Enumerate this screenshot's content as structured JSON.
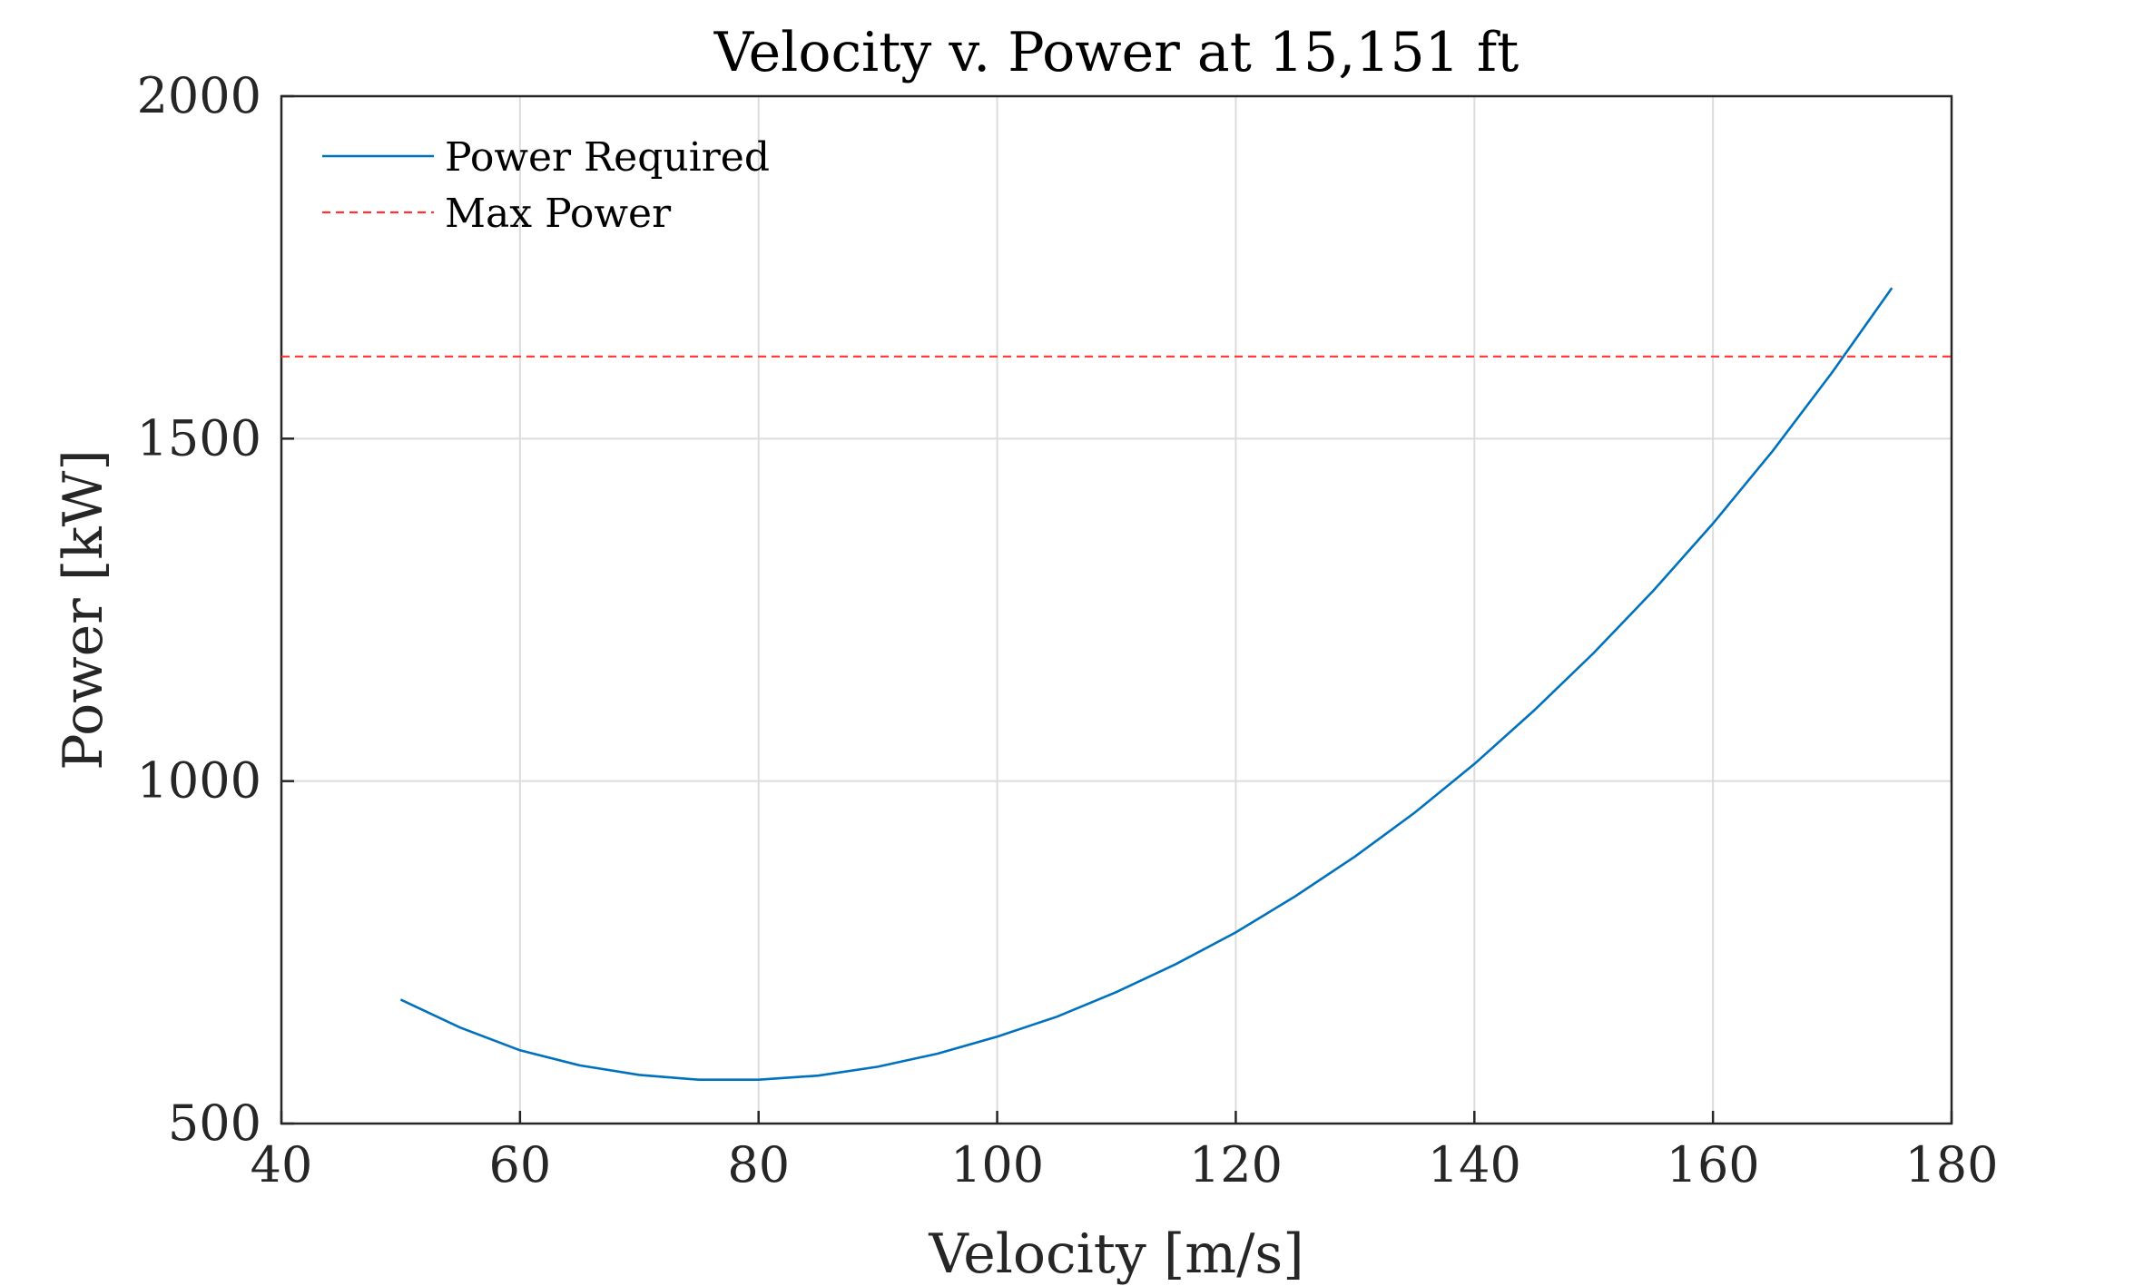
{
  "chart_data": {
    "type": "line",
    "title": "Velocity v. Power at 15,151 ft",
    "xlabel": "Velocity [m/s]",
    "ylabel": "Power [kW]",
    "xlim": [
      40,
      180
    ],
    "ylim": [
      500,
      2000
    ],
    "xticks": [
      "40",
      "60",
      "80",
      "100",
      "120",
      "140",
      "160",
      "180"
    ],
    "yticks": [
      "500",
      "1000",
      "1500",
      "2000"
    ],
    "grid": true,
    "legend_position": "top-left",
    "series": [
      {
        "name": "Power Required",
        "style": "solid",
        "color": "#0072bd",
        "x": [
          50,
          55,
          60,
          65,
          70,
          75,
          80,
          85,
          90,
          95,
          100,
          105,
          110,
          115,
          120,
          125,
          130,
          135,
          140,
          145,
          150,
          155,
          160,
          165,
          170,
          175
        ],
        "y": [
          681,
          640,
          607,
          585,
          571,
          564,
          564,
          570,
          583,
          602,
          627,
          656,
          692,
          733,
          779,
          832,
          890,
          954,
          1025,
          1103,
          1187,
          1278,
          1376,
          1482,
          1597,
          1720
        ]
      },
      {
        "name": "Max Power",
        "style": "dashed",
        "color": "#ff3333",
        "x": [
          40,
          180
        ],
        "y": [
          1620,
          1620
        ]
      }
    ]
  }
}
